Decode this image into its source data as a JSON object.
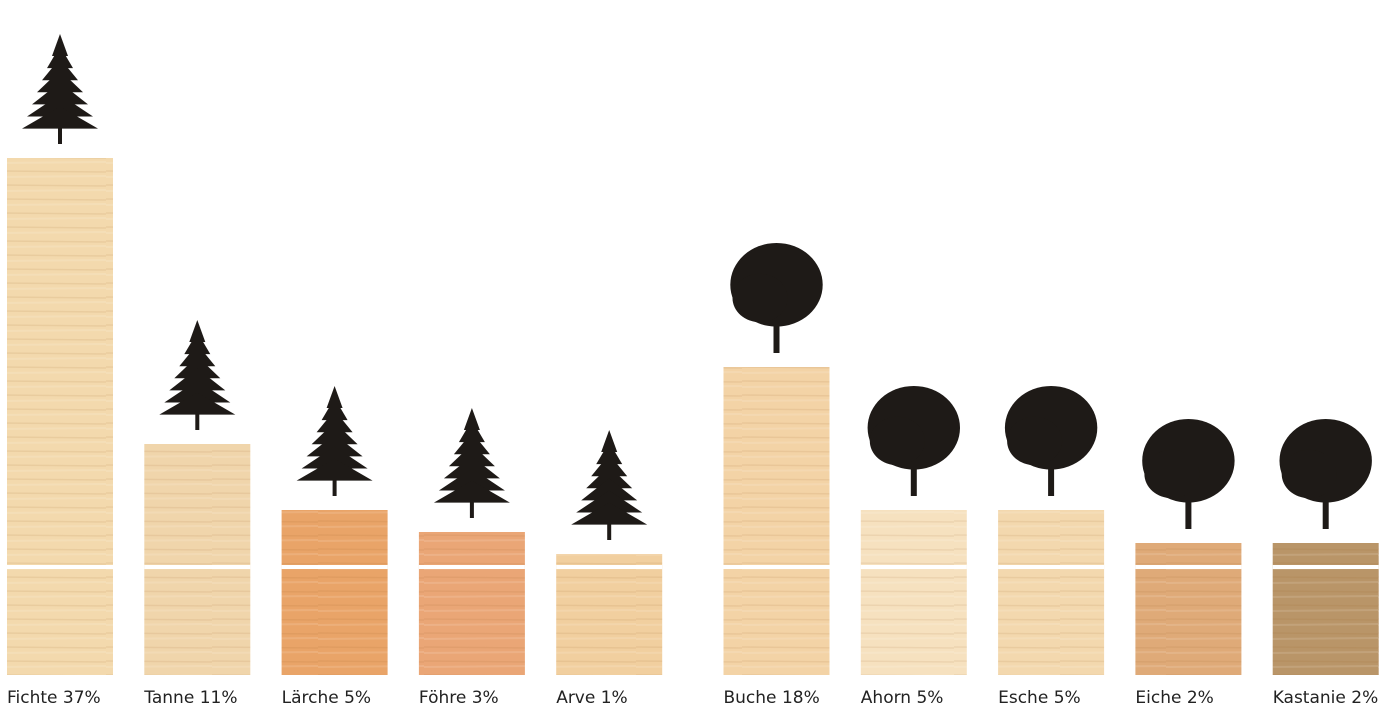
{
  "chart_data": {
    "type": "bar",
    "categories": [
      "Fichte",
      "Tanne",
      "Lärche",
      "Föhre",
      "Arve",
      "Buche",
      "Ahorn",
      "Esche",
      "Eiche",
      "Kastanie"
    ],
    "values": [
      37,
      11,
      5,
      3,
      1,
      18,
      5,
      5,
      2,
      2
    ],
    "value_labels": [
      "37%",
      "11%",
      "5%",
      "3%",
      "1%",
      "18%",
      "5%",
      "5%",
      "2%",
      "2%"
    ],
    "colors": [
      "#f3d9ad",
      "#f0d5ab",
      "#e9a468",
      "#eaa676",
      "#f1cf9f",
      "#f3d3a6",
      "#f6e1bf",
      "#f3d8ae",
      "#dfaa78",
      "#b99568"
    ],
    "ylim": [
      -10,
      40
    ]
  }
}
